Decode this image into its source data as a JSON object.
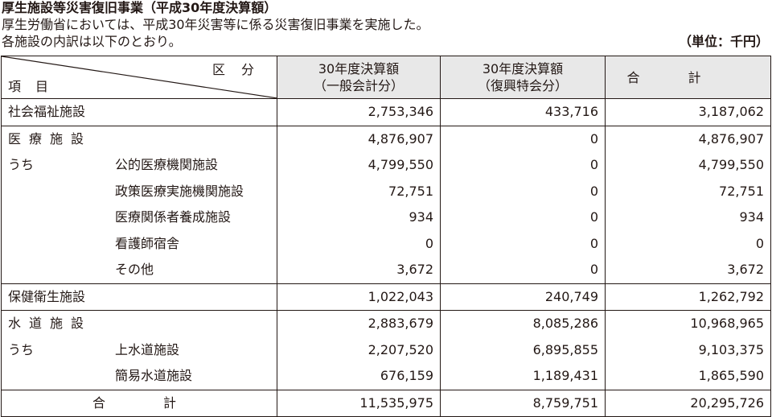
{
  "title": "厚生施設等災害復旧事業（平成30年度決算額）",
  "intro_line1": "厚生労働省においては、平成30年災害等に係る災害復旧事業を実施した。",
  "intro_line2": "各施設の内訳は以下のとおり。",
  "unit": "（単位：千円）",
  "header": {
    "corner_top": "区分",
    "corner_bottom": "項目",
    "col1_line1": "30年度決算額",
    "col1_line2": "（一般会計分）",
    "col2_line1": "30年度決算額",
    "col2_line2": "（復興特会分）",
    "col3": "合計"
  },
  "rows": [
    {
      "main": "社会福祉施設",
      "sub": "",
      "general": "2,753,346",
      "reconstruction": "433,716",
      "total": "3,187,062"
    },
    {
      "main": "医療施設",
      "sub": "",
      "general": "4,876,907",
      "reconstruction": "0",
      "total": "4,876,907"
    },
    {
      "main": "うち",
      "sub": "公的医療機関施設",
      "general": "4,799,550",
      "reconstruction": "0",
      "total": "4,799,550"
    },
    {
      "main": "",
      "sub": "政策医療実施機関施設",
      "general": "72,751",
      "reconstruction": "0",
      "total": "72,751"
    },
    {
      "main": "",
      "sub": "医療関係者養成施設",
      "general": "934",
      "reconstruction": "0",
      "total": "934"
    },
    {
      "main": "",
      "sub": "看護師宿舎",
      "general": "0",
      "reconstruction": "0",
      "total": "0"
    },
    {
      "main": "",
      "sub": "その他",
      "general": "3,672",
      "reconstruction": "0",
      "total": "3,672"
    },
    {
      "main": "保健衛生施設",
      "sub": "",
      "general": "1,022,043",
      "reconstruction": "240,749",
      "total": "1,262,792"
    },
    {
      "main": "水道施設",
      "sub": "",
      "general": "2,883,679",
      "reconstruction": "8,085,286",
      "total": "10,968,965"
    },
    {
      "main": "うち",
      "sub": "上水道施設",
      "general": "2,207,520",
      "reconstruction": "6,895,855",
      "total": "9,103,375"
    },
    {
      "main": "",
      "sub": "簡易水道施設",
      "general": "676,159",
      "reconstruction": "1,189,431",
      "total": "1,865,590"
    }
  ],
  "total_row": {
    "label": "合計",
    "general": "11,535,975",
    "reconstruction": "8,759,751",
    "total": "20,295,726"
  }
}
